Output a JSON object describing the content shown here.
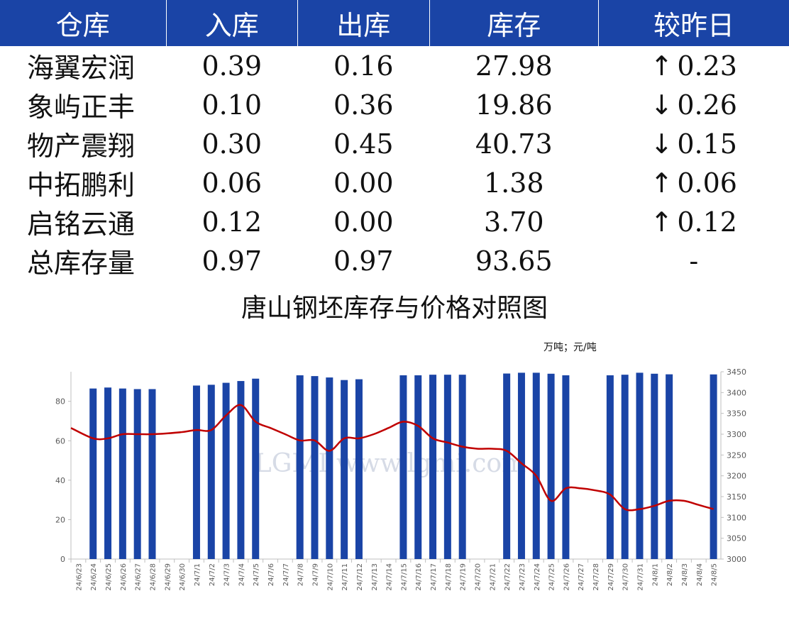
{
  "table": {
    "headers": [
      "仓库",
      "入库",
      "出库",
      "库存",
      "较昨日"
    ],
    "rows": [
      {
        "name": "海翼宏润",
        "in": "0.39",
        "out": "0.16",
        "stock": "27.98",
        "change": "0.23",
        "dir": "up"
      },
      {
        "name": "象屿正丰",
        "in": "0.10",
        "out": "0.36",
        "stock": "19.86",
        "change": "0.26",
        "dir": "down"
      },
      {
        "name": "物产震翔",
        "in": "0.30",
        "out": "0.45",
        "stock": "40.73",
        "change": "0.15",
        "dir": "down"
      },
      {
        "name": "中拓鹏利",
        "in": "0.06",
        "out": "0.00",
        "stock": "1.38",
        "change": "0.06",
        "dir": "up"
      },
      {
        "name": "启铭云通",
        "in": "0.12",
        "out": "0.00",
        "stock": "3.70",
        "change": "0.12",
        "dir": "up"
      },
      {
        "name": "总库存量",
        "in": "0.97",
        "out": "0.97",
        "stock": "93.65",
        "change": "-",
        "dir": "none"
      }
    ],
    "colors": {
      "header_bg": "#1a44a6",
      "up": "#e11b1b",
      "down": "#1aa34a"
    }
  },
  "chart_data": {
    "type": "bar",
    "title": "唐山钢坯库存与价格对照图",
    "unit_label": "万吨；元/吨",
    "categories": [
      "24/6/23",
      "24/6/24",
      "24/6/25",
      "24/6/26",
      "24/6/27",
      "24/6/28",
      "24/6/29",
      "24/6/30",
      "24/7/1",
      "24/7/2",
      "24/7/3",
      "24/7/4",
      "24/7/5",
      "24/7/6",
      "24/7/7",
      "24/7/8",
      "24/7/9",
      "24/7/10",
      "24/7/11",
      "24/7/12",
      "24/7/13",
      "24/7/14",
      "24/7/15",
      "24/7/16",
      "24/7/17",
      "24/7/18",
      "24/7/19",
      "24/7/20",
      "24/7/21",
      "24/7/22",
      "24/7/23",
      "24/7/24",
      "24/7/25",
      "24/7/26",
      "24/7/27",
      "24/7/28",
      "24/7/29",
      "24/7/30",
      "24/7/31",
      "24/8/1",
      "24/8/2",
      "24/8/3",
      "24/8/4",
      "24/8/5"
    ],
    "series": [
      {
        "type": "bar",
        "axis": "left",
        "color": "#1a44a6",
        "values": [
          null,
          86.5,
          87,
          86.5,
          86.2,
          86.2,
          null,
          null,
          88,
          88.4,
          89.4,
          90.3,
          91.5,
          null,
          null,
          93.2,
          92.8,
          92.1,
          90.8,
          91.2,
          null,
          null,
          93.2,
          93.2,
          93.5,
          93.5,
          93.5,
          null,
          null,
          94.1,
          94.5,
          94.5,
          94.0,
          93.2,
          null,
          null,
          93.2,
          93.5,
          94.5,
          94.0,
          93.7,
          null,
          null,
          93.65
        ]
      },
      {
        "type": "line",
        "axis": "right",
        "color": "#c00000",
        "values": [
          3315,
          3290,
          3290,
          3300,
          3300,
          3300,
          3302,
          3305,
          3310,
          3310,
          3345,
          3370,
          3330,
          3315,
          3300,
          3285,
          3285,
          3260,
          3290,
          3290,
          3300,
          3315,
          3330,
          3320,
          3290,
          3280,
          3270,
          3265,
          3265,
          3260,
          3230,
          3200,
          3140,
          3170,
          3170,
          3165,
          3155,
          3120,
          3120,
          3128,
          3140,
          3140,
          3130,
          3120
        ]
      }
    ],
    "y_left": {
      "min": 0,
      "max": 95,
      "ticks": [
        0,
        20,
        40,
        60,
        80
      ]
    },
    "y_right": {
      "min": 3000,
      "max": 3450,
      "ticks": [
        3000,
        3050,
        3100,
        3150,
        3200,
        3250,
        3300,
        3350,
        3400,
        3450
      ]
    },
    "watermark": "LGMI www.lgmi.com"
  }
}
